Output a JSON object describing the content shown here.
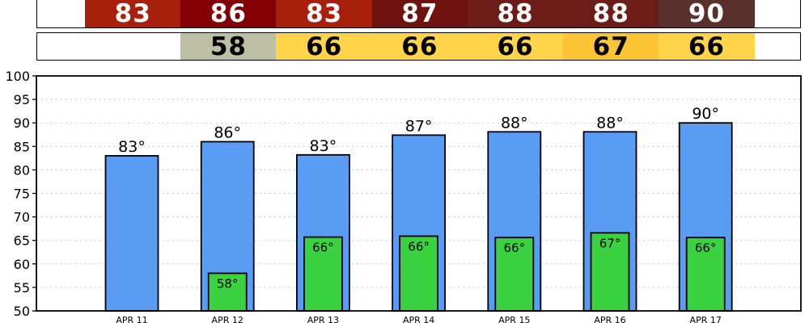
{
  "high_strip": {
    "cells": [
      {
        "value": "83",
        "bg": "#a8200c",
        "fg": "#ffffff"
      },
      {
        "value": "86",
        "bg": "#820005",
        "fg": "#ffffff"
      },
      {
        "value": "83",
        "bg": "#a8200c",
        "fg": "#ffffff"
      },
      {
        "value": "87",
        "bg": "#6f1210",
        "fg": "#ffffff"
      },
      {
        "value": "88",
        "bg": "#6e1c18",
        "fg": "#ffffff"
      },
      {
        "value": "88",
        "bg": "#6e1c18",
        "fg": "#ffffff"
      },
      {
        "value": "90",
        "bg": "#5a302a",
        "fg": "#ffffff"
      }
    ]
  },
  "low_strip": {
    "cells": [
      {
        "value": "",
        "bg": "#ffffff",
        "fg": "#000000"
      },
      {
        "value": "58",
        "bg": "#bdbfa4",
        "fg": "#000000"
      },
      {
        "value": "66",
        "bg": "#ffd448",
        "fg": "#000000"
      },
      {
        "value": "66",
        "bg": "#ffd448",
        "fg": "#000000"
      },
      {
        "value": "66",
        "bg": "#ffd448",
        "fg": "#000000"
      },
      {
        "value": "67",
        "bg": "#fdc535",
        "fg": "#000000"
      },
      {
        "value": "66",
        "bg": "#ffd448",
        "fg": "#000000"
      }
    ]
  },
  "chart_data": {
    "type": "bar",
    "categories": [
      "APR 11",
      "APR 12",
      "APR 13",
      "APR 14",
      "APR 15",
      "APR 16",
      "APR 17"
    ],
    "series": [
      {
        "values": [
          83,
          86,
          83.2,
          87.4,
          88.1,
          88.1,
          90
        ],
        "labels": [
          "83°",
          "86°",
          "83°",
          "87°",
          "88°",
          "88°",
          "90°"
        ],
        "color": "#589cf4"
      },
      {
        "values": [
          null,
          58,
          65.7,
          65.9,
          65.6,
          66.6,
          65.6
        ],
        "labels": [
          "",
          "58°",
          "66°",
          "66°",
          "66°",
          "67°",
          "66°"
        ],
        "color": "#3ad240"
      }
    ],
    "ylim": [
      50,
      100
    ],
    "yticks": [
      50,
      55,
      60,
      65,
      70,
      75,
      80,
      85,
      90,
      95,
      100
    ],
    "grid": true
  }
}
